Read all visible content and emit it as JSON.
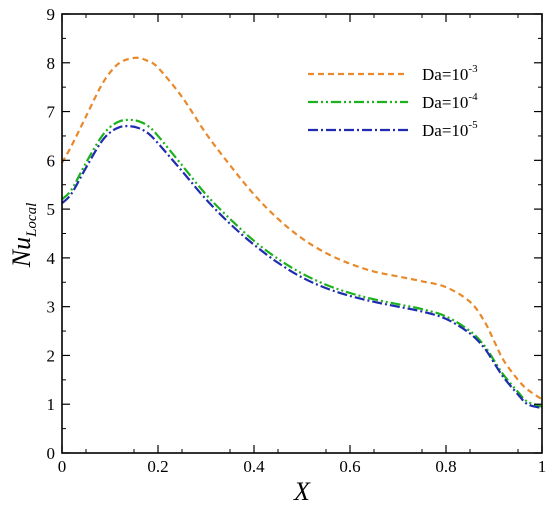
{
  "chart_data": {
    "type": "line",
    "xlabel": "X",
    "ylabel_main": "Nu",
    "ylabel_sub": "Local",
    "xlim": [
      0,
      1
    ],
    "ylim": [
      0,
      9
    ],
    "xticks": [
      0,
      0.2,
      0.4,
      0.6,
      0.8,
      1
    ],
    "xtick_labels": [
      "0",
      "0.2",
      "0.4",
      "0.6",
      "0.8",
      "1"
    ],
    "yticks": [
      0,
      1,
      2,
      3,
      4,
      5,
      6,
      7,
      8,
      9
    ],
    "ytick_labels": [
      "0",
      "1",
      "2",
      "3",
      "4",
      "5",
      "6",
      "7",
      "8",
      "9"
    ],
    "grid": false,
    "legend_position": "top-right",
    "series": [
      {
        "name_base": "Da=10",
        "name_exp": "-3",
        "color": "#E8892B",
        "style": "dashed",
        "x": [
          0,
          0.02,
          0.05,
          0.08,
          0.1,
          0.12,
          0.14,
          0.16,
          0.18,
          0.2,
          0.25,
          0.3,
          0.35,
          0.4,
          0.45,
          0.5,
          0.55,
          0.6,
          0.65,
          0.7,
          0.75,
          0.8,
          0.85,
          0.88,
          0.9,
          0.92,
          0.95,
          0.97,
          1.0
        ],
        "y": [
          5.95,
          6.3,
          6.9,
          7.5,
          7.8,
          8.0,
          8.08,
          8.1,
          8.03,
          7.9,
          7.3,
          6.55,
          5.9,
          5.3,
          4.8,
          4.4,
          4.1,
          3.88,
          3.72,
          3.62,
          3.52,
          3.4,
          3.1,
          2.7,
          2.3,
          1.9,
          1.5,
          1.3,
          1.1
        ]
      },
      {
        "name_base": "Da=10",
        "name_exp": "-4",
        "color": "#1DB11D",
        "style": "dashdotdot",
        "x": [
          0,
          0.02,
          0.05,
          0.08,
          0.1,
          0.12,
          0.14,
          0.16,
          0.18,
          0.2,
          0.25,
          0.3,
          0.35,
          0.4,
          0.45,
          0.5,
          0.55,
          0.6,
          0.65,
          0.7,
          0.75,
          0.8,
          0.85,
          0.88,
          0.9,
          0.92,
          0.95,
          0.97,
          1.0
        ],
        "y": [
          5.2,
          5.4,
          5.95,
          6.45,
          6.68,
          6.8,
          6.83,
          6.8,
          6.7,
          6.5,
          5.9,
          5.3,
          4.8,
          4.35,
          3.98,
          3.68,
          3.45,
          3.28,
          3.15,
          3.05,
          2.95,
          2.8,
          2.5,
          2.2,
          1.9,
          1.6,
          1.25,
          1.05,
          0.95
        ]
      },
      {
        "name_base": "Da=10",
        "name_exp": "-5",
        "color": "#1F2CB0",
        "style": "dashdot",
        "x": [
          0,
          0.02,
          0.05,
          0.08,
          0.1,
          0.12,
          0.14,
          0.16,
          0.18,
          0.2,
          0.25,
          0.3,
          0.35,
          0.4,
          0.45,
          0.5,
          0.55,
          0.6,
          0.65,
          0.7,
          0.75,
          0.8,
          0.85,
          0.88,
          0.9,
          0.92,
          0.95,
          0.97,
          1.0
        ],
        "y": [
          5.12,
          5.32,
          5.85,
          6.35,
          6.57,
          6.68,
          6.7,
          6.66,
          6.55,
          6.35,
          5.78,
          5.2,
          4.7,
          4.27,
          3.9,
          3.6,
          3.38,
          3.22,
          3.1,
          3.0,
          2.9,
          2.75,
          2.45,
          2.15,
          1.85,
          1.55,
          1.2,
          1.0,
          0.92
        ]
      }
    ]
  }
}
